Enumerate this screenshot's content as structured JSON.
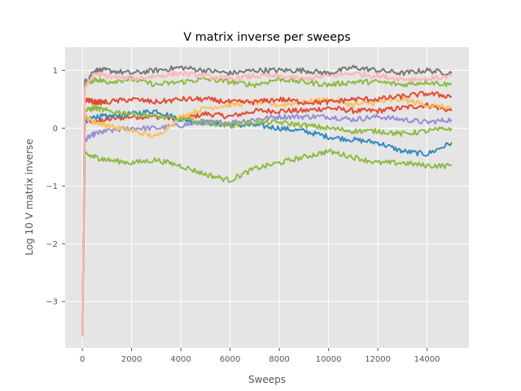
{
  "chart_data": {
    "type": "line",
    "title": "V matrix inverse per sweeps",
    "xlabel": "Sweeps",
    "ylabel": "Log 10 V matrix inverse",
    "xlim": [
      -700,
      15700
    ],
    "ylim": [
      -3.8,
      1.4
    ],
    "xticks": [
      0,
      2000,
      4000,
      6000,
      8000,
      10000,
      12000,
      14000
    ],
    "yticks": [
      1,
      0,
      -1,
      -2,
      -3
    ],
    "ytick_labels": [
      "1",
      "0",
      "−1",
      "−2",
      "−3"
    ],
    "grid": true,
    "legend": "none",
    "series": [
      {
        "color": "#E24A33",
        "x": [
          0,
          100,
          500,
          1000,
          2000,
          3000,
          4000,
          5000,
          6000,
          7000,
          8000,
          9000,
          10000,
          11000,
          12000,
          13000,
          14000,
          15000
        ],
        "y": [
          -3.6,
          0.15,
          0.1,
          0.15,
          0.2,
          0.2,
          0.15,
          0.25,
          0.2,
          0.3,
          0.3,
          0.3,
          0.35,
          0.3,
          0.3,
          0.35,
          0.4,
          0.3
        ]
      },
      {
        "color": "#348ABD",
        "x": [
          0,
          100,
          500,
          1000,
          2000,
          3000,
          4000,
          5000,
          6000,
          7000,
          8000,
          9000,
          10000,
          11000,
          12000,
          13000,
          14000,
          15000
        ],
        "y": [
          -3.6,
          0.1,
          0.2,
          0.2,
          0.25,
          0.3,
          0.15,
          0.1,
          0.05,
          0.05,
          0.0,
          -0.05,
          -0.15,
          -0.2,
          -0.25,
          -0.4,
          -0.45,
          -0.25
        ]
      },
      {
        "color": "#988ED5",
        "x": [
          0,
          100,
          500,
          1000,
          2000,
          3000,
          4000,
          5000,
          6000,
          7000,
          8000,
          9000,
          10000,
          11000,
          12000,
          13000,
          14000,
          15000
        ],
        "y": [
          -3.6,
          -0.2,
          -0.1,
          -0.05,
          0.0,
          0.0,
          0.05,
          0.1,
          0.1,
          0.15,
          0.2,
          0.2,
          0.2,
          0.15,
          0.2,
          0.15,
          0.1,
          0.15
        ]
      },
      {
        "color": "#777777",
        "x": [
          0,
          100,
          500,
          1000,
          2000,
          3000,
          4000,
          5000,
          6000,
          7000,
          8000,
          9000,
          10000,
          11000,
          12000,
          13000,
          14000,
          15000
        ],
        "y": [
          -3.6,
          0.8,
          1.0,
          1.0,
          0.95,
          1.0,
          1.05,
          1.0,
          0.95,
          1.0,
          1.0,
          1.0,
          0.95,
          1.05,
          1.0,
          0.95,
          1.0,
          0.95
        ]
      },
      {
        "color": "#FBC15E",
        "x": [
          0,
          100,
          500,
          1000,
          2000,
          3000,
          4000,
          5000,
          6000,
          7000,
          8000,
          9000,
          10000,
          11000,
          12000,
          13000,
          14000,
          15000
        ],
        "y": [
          -3.6,
          0.2,
          0.1,
          0.05,
          -0.05,
          -0.15,
          0.2,
          0.35,
          0.4,
          0.45,
          0.4,
          0.45,
          0.5,
          0.4,
          0.45,
          0.5,
          0.4,
          0.35
        ]
      },
      {
        "color": "#8EBA42",
        "x": [
          0,
          100,
          500,
          1000,
          2000,
          3000,
          4000,
          5000,
          6000,
          7000,
          8000,
          9000,
          10000,
          11000,
          12000,
          13000,
          14000,
          15000
        ],
        "y": [
          -3.6,
          -0.45,
          -0.5,
          -0.55,
          -0.6,
          -0.55,
          -0.65,
          -0.8,
          -0.9,
          -0.7,
          -0.6,
          -0.5,
          -0.4,
          -0.5,
          -0.6,
          -0.6,
          -0.65,
          -0.65
        ]
      },
      {
        "color": "#8EBA42",
        "x": [
          0,
          100,
          500,
          1000,
          2000,
          3000,
          4000,
          5000,
          6000,
          7000,
          8000,
          9000,
          10000,
          11000,
          12000,
          13000,
          14000,
          15000
        ],
        "y": [
          -3.6,
          0.75,
          0.85,
          0.8,
          0.85,
          0.75,
          0.8,
          0.85,
          0.8,
          0.75,
          0.85,
          0.8,
          0.75,
          0.8,
          0.8,
          0.75,
          0.8,
          0.75
        ]
      },
      {
        "color": "#8EBA42",
        "x": [
          0,
          100,
          500,
          1000,
          2000,
          3000,
          4000,
          5000,
          6000,
          7000,
          8000,
          9000,
          10000,
          11000,
          12000,
          13000,
          14000,
          15000
        ],
        "y": [
          -3.6,
          0.3,
          0.35,
          0.3,
          0.25,
          0.2,
          0.15,
          0.1,
          0.05,
          0.1,
          0.1,
          0.05,
          0.0,
          -0.05,
          -0.05,
          -0.1,
          -0.05,
          0.0
        ]
      },
      {
        "color": "#E24A33",
        "x": [
          0,
          100,
          500,
          1000,
          2000,
          3000,
          4000,
          5000,
          6000,
          7000,
          8000,
          9000,
          10000,
          11000,
          12000,
          13000,
          14000,
          15000
        ],
        "y": [
          -3.6,
          0.5,
          0.45,
          0.45,
          0.5,
          0.45,
          0.5,
          0.5,
          0.45,
          0.45,
          0.5,
          0.45,
          0.45,
          0.5,
          0.5,
          0.55,
          0.6,
          0.55
        ]
      },
      {
        "color": "#FFB5B8",
        "x": [
          0,
          100,
          500,
          1000,
          2000,
          3000,
          4000,
          5000,
          6000,
          7000,
          8000,
          9000,
          10000,
          11000,
          12000,
          13000,
          14000,
          15000
        ],
        "y": [
          -3.6,
          0.7,
          0.95,
          0.9,
          0.85,
          0.9,
          0.95,
          0.9,
          0.85,
          0.9,
          0.9,
          0.85,
          0.9,
          0.95,
          0.9,
          0.85,
          0.85,
          0.9
        ]
      }
    ]
  }
}
